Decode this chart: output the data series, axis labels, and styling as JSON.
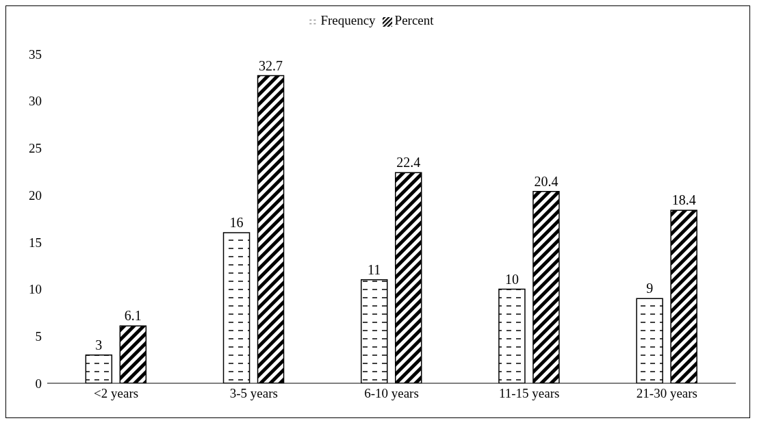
{
  "chart_data": {
    "type": "bar",
    "categories": [
      "<2 years",
      "3-5 years",
      "6-10 years",
      "11-15 years",
      "21-30 years"
    ],
    "series": [
      {
        "name": "Frequency",
        "color": "#000000",
        "values": [
          3,
          16,
          11,
          10,
          9
        ]
      },
      {
        "name": "Percent",
        "color": "#000000",
        "values": [
          6.1,
          32.7,
          22.4,
          20.4,
          18.4
        ]
      }
    ],
    "ylim": [
      0,
      35
    ],
    "yticks": [
      0,
      5,
      10,
      15,
      20,
      25,
      30,
      35
    ],
    "grid": false,
    "legend": "top",
    "data_labels": true
  }
}
